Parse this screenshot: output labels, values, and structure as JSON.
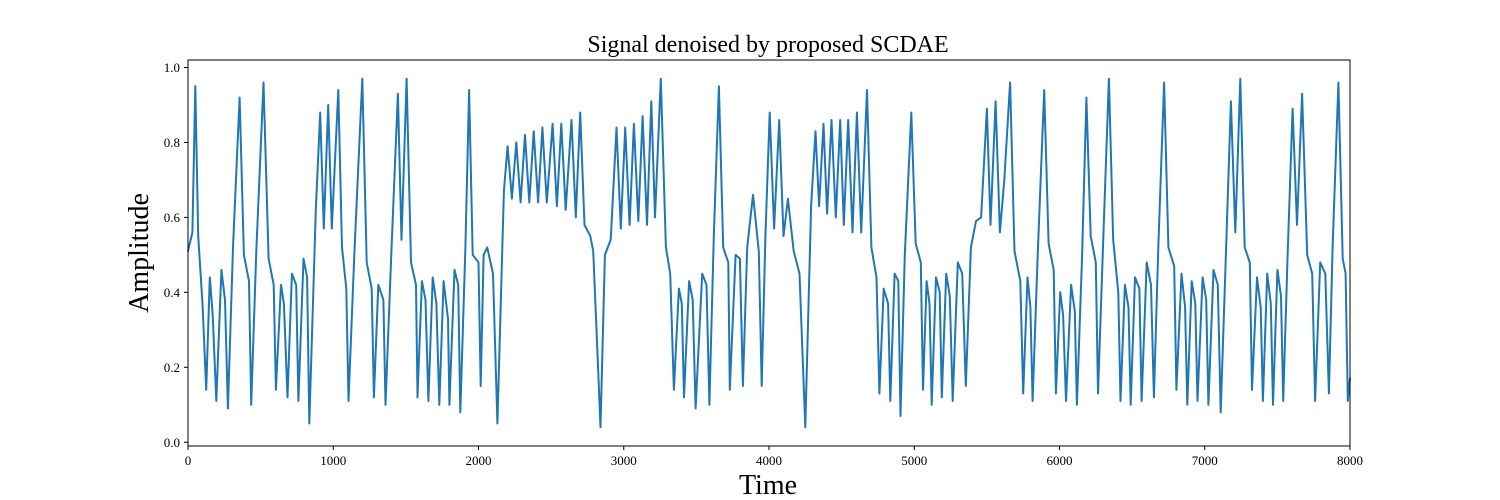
{
  "chart_data": {
    "type": "line",
    "title": "Signal denoised by proposed SCDAE",
    "xlabel": "Time",
    "ylabel": "Amplitude",
    "xlim": [
      0,
      8000
    ],
    "ylim": [
      -0.01,
      1.02
    ],
    "xticks": [
      0,
      1000,
      2000,
      3000,
      4000,
      5000,
      6000,
      7000,
      8000
    ],
    "yticks": [
      0.0,
      0.2,
      0.4,
      0.6,
      0.8,
      1.0
    ],
    "xtick_labels": [
      "0",
      "1000",
      "2000",
      "3000",
      "4000",
      "5000",
      "6000",
      "7000",
      "8000"
    ],
    "ytick_labels": [
      "0.0",
      "0.2",
      "0.4",
      "0.6",
      "0.8",
      "1.0"
    ],
    "grid": false,
    "legend": false,
    "series": [
      {
        "color": "#1f77b4",
        "line_width": 2,
        "points": [
          [
            0,
            0.51
          ],
          [
            30,
            0.56
          ],
          [
            50,
            0.95
          ],
          [
            70,
            0.55
          ],
          [
            100,
            0.37
          ],
          [
            125,
            0.14
          ],
          [
            150,
            0.44
          ],
          [
            170,
            0.34
          ],
          [
            195,
            0.11
          ],
          [
            230,
            0.46
          ],
          [
            255,
            0.38
          ],
          [
            275,
            0.09
          ],
          [
            310,
            0.52
          ],
          [
            355,
            0.92
          ],
          [
            385,
            0.5
          ],
          [
            420,
            0.43
          ],
          [
            435,
            0.1
          ],
          [
            470,
            0.51
          ],
          [
            520,
            0.96
          ],
          [
            555,
            0.49
          ],
          [
            590,
            0.42
          ],
          [
            605,
            0.14
          ],
          [
            640,
            0.42
          ],
          [
            660,
            0.37
          ],
          [
            685,
            0.12
          ],
          [
            715,
            0.45
          ],
          [
            745,
            0.42
          ],
          [
            760,
            0.11
          ],
          [
            795,
            0.49
          ],
          [
            820,
            0.44
          ],
          [
            835,
            0.05
          ],
          [
            880,
            0.62
          ],
          [
            910,
            0.88
          ],
          [
            935,
            0.57
          ],
          [
            965,
            0.9
          ],
          [
            990,
            0.57
          ],
          [
            1035,
            0.94
          ],
          [
            1060,
            0.52
          ],
          [
            1090,
            0.41
          ],
          [
            1105,
            0.11
          ],
          [
            1145,
            0.5
          ],
          [
            1200,
            0.97
          ],
          [
            1230,
            0.48
          ],
          [
            1265,
            0.41
          ],
          [
            1280,
            0.12
          ],
          [
            1310,
            0.42
          ],
          [
            1345,
            0.38
          ],
          [
            1360,
            0.1
          ],
          [
            1400,
            0.51
          ],
          [
            1445,
            0.93
          ],
          [
            1470,
            0.54
          ],
          [
            1505,
            0.97
          ],
          [
            1535,
            0.48
          ],
          [
            1570,
            0.42
          ],
          [
            1580,
            0.12
          ],
          [
            1610,
            0.43
          ],
          [
            1635,
            0.38
          ],
          [
            1655,
            0.11
          ],
          [
            1685,
            0.44
          ],
          [
            1710,
            0.37
          ],
          [
            1730,
            0.1
          ],
          [
            1760,
            0.43
          ],
          [
            1790,
            0.33
          ],
          [
            1800,
            0.1
          ],
          [
            1835,
            0.46
          ],
          [
            1860,
            0.42
          ],
          [
            1875,
            0.08
          ],
          [
            1910,
            0.52
          ],
          [
            1935,
            0.94
          ],
          [
            1960,
            0.5
          ],
          [
            2000,
            0.48
          ],
          [
            2015,
            0.15
          ],
          [
            2035,
            0.5
          ],
          [
            2060,
            0.52
          ],
          [
            2100,
            0.45
          ],
          [
            2130,
            0.05
          ],
          [
            2175,
            0.67
          ],
          [
            2200,
            0.79
          ],
          [
            2230,
            0.65
          ],
          [
            2260,
            0.8
          ],
          [
            2290,
            0.64
          ],
          [
            2320,
            0.82
          ],
          [
            2350,
            0.64
          ],
          [
            2380,
            0.83
          ],
          [
            2410,
            0.64
          ],
          [
            2440,
            0.84
          ],
          [
            2470,
            0.64
          ],
          [
            2510,
            0.85
          ],
          [
            2540,
            0.63
          ],
          [
            2570,
            0.85
          ],
          [
            2600,
            0.62
          ],
          [
            2640,
            0.86
          ],
          [
            2670,
            0.6
          ],
          [
            2700,
            0.88
          ],
          [
            2730,
            0.58
          ],
          [
            2770,
            0.55
          ],
          [
            2790,
            0.51
          ],
          [
            2810,
            0.32
          ],
          [
            2840,
            0.04
          ],
          [
            2870,
            0.5
          ],
          [
            2910,
            0.54
          ],
          [
            2950,
            0.84
          ],
          [
            2980,
            0.57
          ],
          [
            3010,
            0.84
          ],
          [
            3040,
            0.58
          ],
          [
            3070,
            0.85
          ],
          [
            3100,
            0.59
          ],
          [
            3130,
            0.87
          ],
          [
            3160,
            0.58
          ],
          [
            3190,
            0.91
          ],
          [
            3215,
            0.6
          ],
          [
            3255,
            0.97
          ],
          [
            3290,
            0.52
          ],
          [
            3320,
            0.45
          ],
          [
            3345,
            0.14
          ],
          [
            3380,
            0.41
          ],
          [
            3400,
            0.37
          ],
          [
            3415,
            0.12
          ],
          [
            3450,
            0.43
          ],
          [
            3475,
            0.38
          ],
          [
            3495,
            0.09
          ],
          [
            3540,
            0.45
          ],
          [
            3570,
            0.42
          ],
          [
            3590,
            0.1
          ],
          [
            3620,
            0.55
          ],
          [
            3655,
            0.95
          ],
          [
            3685,
            0.52
          ],
          [
            3720,
            0.48
          ],
          [
            3730,
            0.14
          ],
          [
            3770,
            0.5
          ],
          [
            3800,
            0.49
          ],
          [
            3820,
            0.15
          ],
          [
            3850,
            0.52
          ],
          [
            3890,
            0.66
          ],
          [
            3930,
            0.51
          ],
          [
            3950,
            0.15
          ],
          [
            3975,
            0.55
          ],
          [
            4005,
            0.88
          ],
          [
            4035,
            0.57
          ],
          [
            4070,
            0.86
          ],
          [
            4100,
            0.55
          ],
          [
            4130,
            0.65
          ],
          [
            4170,
            0.51
          ],
          [
            4210,
            0.45
          ],
          [
            4250,
            0.04
          ],
          [
            4290,
            0.63
          ],
          [
            4320,
            0.83
          ],
          [
            4345,
            0.63
          ],
          [
            4375,
            0.85
          ],
          [
            4400,
            0.61
          ],
          [
            4430,
            0.86
          ],
          [
            4460,
            0.6
          ],
          [
            4490,
            0.86
          ],
          [
            4515,
            0.58
          ],
          [
            4545,
            0.86
          ],
          [
            4575,
            0.56
          ],
          [
            4605,
            0.88
          ],
          [
            4635,
            0.56
          ],
          [
            4675,
            0.94
          ],
          [
            4705,
            0.52
          ],
          [
            4740,
            0.44
          ],
          [
            4760,
            0.13
          ],
          [
            4790,
            0.41
          ],
          [
            4820,
            0.37
          ],
          [
            4835,
            0.11
          ],
          [
            4865,
            0.45
          ],
          [
            4890,
            0.43
          ],
          [
            4905,
            0.07
          ],
          [
            4935,
            0.5
          ],
          [
            4980,
            0.88
          ],
          [
            5010,
            0.53
          ],
          [
            5045,
            0.48
          ],
          [
            5060,
            0.14
          ],
          [
            5085,
            0.43
          ],
          [
            5105,
            0.37
          ],
          [
            5120,
            0.1
          ],
          [
            5150,
            0.44
          ],
          [
            5175,
            0.4
          ],
          [
            5190,
            0.12
          ],
          [
            5220,
            0.45
          ],
          [
            5245,
            0.39
          ],
          [
            5265,
            0.11
          ],
          [
            5300,
            0.48
          ],
          [
            5330,
            0.45
          ],
          [
            5355,
            0.15
          ],
          [
            5390,
            0.52
          ],
          [
            5425,
            0.59
          ],
          [
            5460,
            0.6
          ],
          [
            5500,
            0.89
          ],
          [
            5525,
            0.58
          ],
          [
            5560,
            0.91
          ],
          [
            5590,
            0.56
          ],
          [
            5620,
            0.7
          ],
          [
            5660,
            0.96
          ],
          [
            5690,
            0.51
          ],
          [
            5730,
            0.43
          ],
          [
            5750,
            0.13
          ],
          [
            5780,
            0.44
          ],
          [
            5800,
            0.36
          ],
          [
            5815,
            0.11
          ],
          [
            5850,
            0.5
          ],
          [
            5895,
            0.94
          ],
          [
            5925,
            0.53
          ],
          [
            5960,
            0.46
          ],
          [
            5975,
            0.13
          ],
          [
            6005,
            0.4
          ],
          [
            6025,
            0.34
          ],
          [
            6045,
            0.11
          ],
          [
            6080,
            0.42
          ],
          [
            6105,
            0.35
          ],
          [
            6120,
            0.1
          ],
          [
            6155,
            0.49
          ],
          [
            6185,
            0.92
          ],
          [
            6215,
            0.55
          ],
          [
            6250,
            0.48
          ],
          [
            6265,
            0.13
          ],
          [
            6300,
            0.53
          ],
          [
            6340,
            0.97
          ],
          [
            6370,
            0.54
          ],
          [
            6405,
            0.4
          ],
          [
            6420,
            0.11
          ],
          [
            6450,
            0.42
          ],
          [
            6475,
            0.36
          ],
          [
            6490,
            0.1
          ],
          [
            6520,
            0.44
          ],
          [
            6550,
            0.41
          ],
          [
            6565,
            0.11
          ],
          [
            6600,
            0.48
          ],
          [
            6630,
            0.42
          ],
          [
            6650,
            0.12
          ],
          [
            6680,
            0.52
          ],
          [
            6720,
            0.96
          ],
          [
            6750,
            0.52
          ],
          [
            6790,
            0.47
          ],
          [
            6805,
            0.14
          ],
          [
            6840,
            0.45
          ],
          [
            6865,
            0.36
          ],
          [
            6880,
            0.1
          ],
          [
            6910,
            0.43
          ],
          [
            6935,
            0.37
          ],
          [
            6950,
            0.11
          ],
          [
            6985,
            0.44
          ],
          [
            7010,
            0.38
          ],
          [
            7025,
            0.1
          ],
          [
            7060,
            0.46
          ],
          [
            7090,
            0.42
          ],
          [
            7110,
            0.08
          ],
          [
            7150,
            0.55
          ],
          [
            7180,
            0.91
          ],
          [
            7210,
            0.56
          ],
          [
            7245,
            0.97
          ],
          [
            7275,
            0.52
          ],
          [
            7310,
            0.48
          ],
          [
            7325,
            0.14
          ],
          [
            7360,
            0.44
          ],
          [
            7385,
            0.36
          ],
          [
            7400,
            0.11
          ],
          [
            7430,
            0.45
          ],
          [
            7455,
            0.37
          ],
          [
            7470,
            0.1
          ],
          [
            7500,
            0.46
          ],
          [
            7525,
            0.39
          ],
          [
            7540,
            0.11
          ],
          [
            7570,
            0.49
          ],
          [
            7605,
            0.89
          ],
          [
            7635,
            0.58
          ],
          [
            7670,
            0.93
          ],
          [
            7705,
            0.5
          ],
          [
            7740,
            0.45
          ],
          [
            7760,
            0.11
          ],
          [
            7795,
            0.48
          ],
          [
            7830,
            0.45
          ],
          [
            7855,
            0.13
          ],
          [
            7880,
            0.52
          ],
          [
            7920,
            0.96
          ],
          [
            7950,
            0.49
          ],
          [
            7970,
            0.45
          ],
          [
            7985,
            0.11
          ],
          [
            8000,
            0.17
          ]
        ]
      }
    ]
  }
}
